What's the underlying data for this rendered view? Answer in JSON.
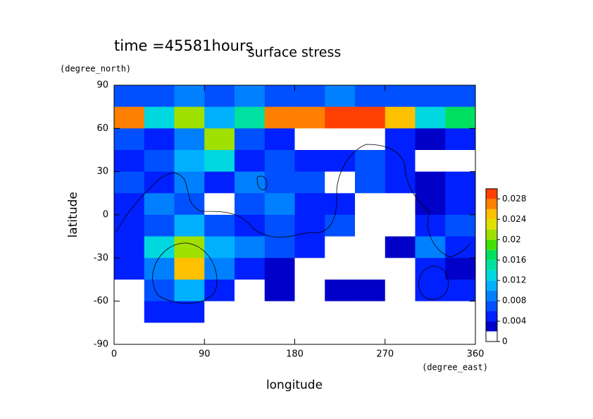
{
  "chart_data": {
    "type": "contour",
    "subtitle": "time =45581hours",
    "title": "surface stress",
    "x_label": "longitude",
    "x_unit": "(degree_east)",
    "y_label": "latitude",
    "y_unit": "(degree_north)",
    "xlim": [
      0,
      360
    ],
    "xticks": [
      0,
      90,
      180,
      270,
      360
    ],
    "ylim": [
      -90,
      90
    ],
    "yticks": [
      90,
      60,
      30,
      0,
      -30,
      -60,
      -90
    ],
    "x": [
      15,
      45,
      75,
      105,
      135,
      165,
      195,
      225,
      255,
      285,
      315,
      345
    ],
    "y": [
      82.5,
      67.5,
      52.5,
      37.5,
      22.5,
      7.5,
      -7.5,
      -22.5,
      -37.5,
      -52.5,
      -67.5,
      -82.5
    ],
    "z": [
      [
        0.006,
        0.006,
        0.008,
        0.006,
        0.008,
        0.006,
        0.006,
        0.008,
        0.006,
        0.006,
        0.006,
        0.006
      ],
      [
        0.026,
        0.012,
        0.02,
        0.01,
        0.014,
        0.026,
        0.026,
        0.028,
        0.028,
        0.024,
        0.012,
        0.016
      ],
      [
        0.006,
        0.004,
        0.008,
        0.02,
        0.006,
        0.004,
        0.001,
        0.001,
        0.001,
        0.004,
        0.003,
        0.004
      ],
      [
        0.005,
        0.006,
        0.01,
        0.012,
        0.005,
        0.006,
        0.004,
        0.005,
        0.006,
        0.004,
        0.001,
        0.001
      ],
      [
        0.006,
        0.004,
        0.008,
        0.004,
        0.008,
        0.006,
        0.006,
        0.001,
        0.006,
        0.004,
        0.003,
        0.004
      ],
      [
        0.004,
        0.008,
        0.006,
        0.001,
        0.006,
        0.008,
        0.004,
        0.005,
        0.001,
        0.001,
        0.003,
        0.004
      ],
      [
        0.004,
        0.006,
        0.01,
        0.006,
        0.005,
        0.006,
        0.004,
        0.006,
        0.001,
        0.001,
        0.004,
        0.006
      ],
      [
        0.005,
        0.012,
        0.02,
        0.01,
        0.008,
        0.006,
        0.004,
        0.001,
        0.001,
        0.003,
        0.008,
        0.005
      ],
      [
        0.004,
        0.008,
        0.024,
        0.008,
        0.004,
        0.003,
        0.001,
        0.001,
        0.001,
        0.001,
        0.004,
        0.003
      ],
      [
        0.001,
        0.006,
        0.01,
        0.004,
        0.001,
        0.003,
        0.001,
        0.003,
        0.003,
        0.001,
        0.004,
        0.004
      ],
      [
        0.001,
        0.004,
        0.004,
        0.001,
        0.001,
        0.001,
        0.001,
        0.001,
        0.001,
        0.001,
        0.001,
        0.001
      ],
      [
        0,
        0,
        0,
        0,
        0,
        0,
        0,
        0,
        0,
        0,
        0,
        0
      ]
    ],
    "levels": [
      0,
      0.002,
      0.004,
      0.006,
      0.008,
      0.01,
      0.012,
      0.014,
      0.016,
      0.018,
      0.02,
      0.022,
      0.024,
      0.026,
      0.028,
      0.03
    ],
    "colors": [
      "#ffffff",
      "#0000c8",
      "#0020ff",
      "#0050ff",
      "#0080ff",
      "#00b0ff",
      "#00d8e0",
      "#00e0a0",
      "#00e060",
      "#40e000",
      "#a0e000",
      "#e0e000",
      "#ffc000",
      "#ff8000",
      "#ff4000"
    ],
    "colorbar_ticks": [
      0,
      0.004,
      0.008,
      0.012,
      0.016,
      0.02,
      0.024,
      0.028
    ]
  }
}
